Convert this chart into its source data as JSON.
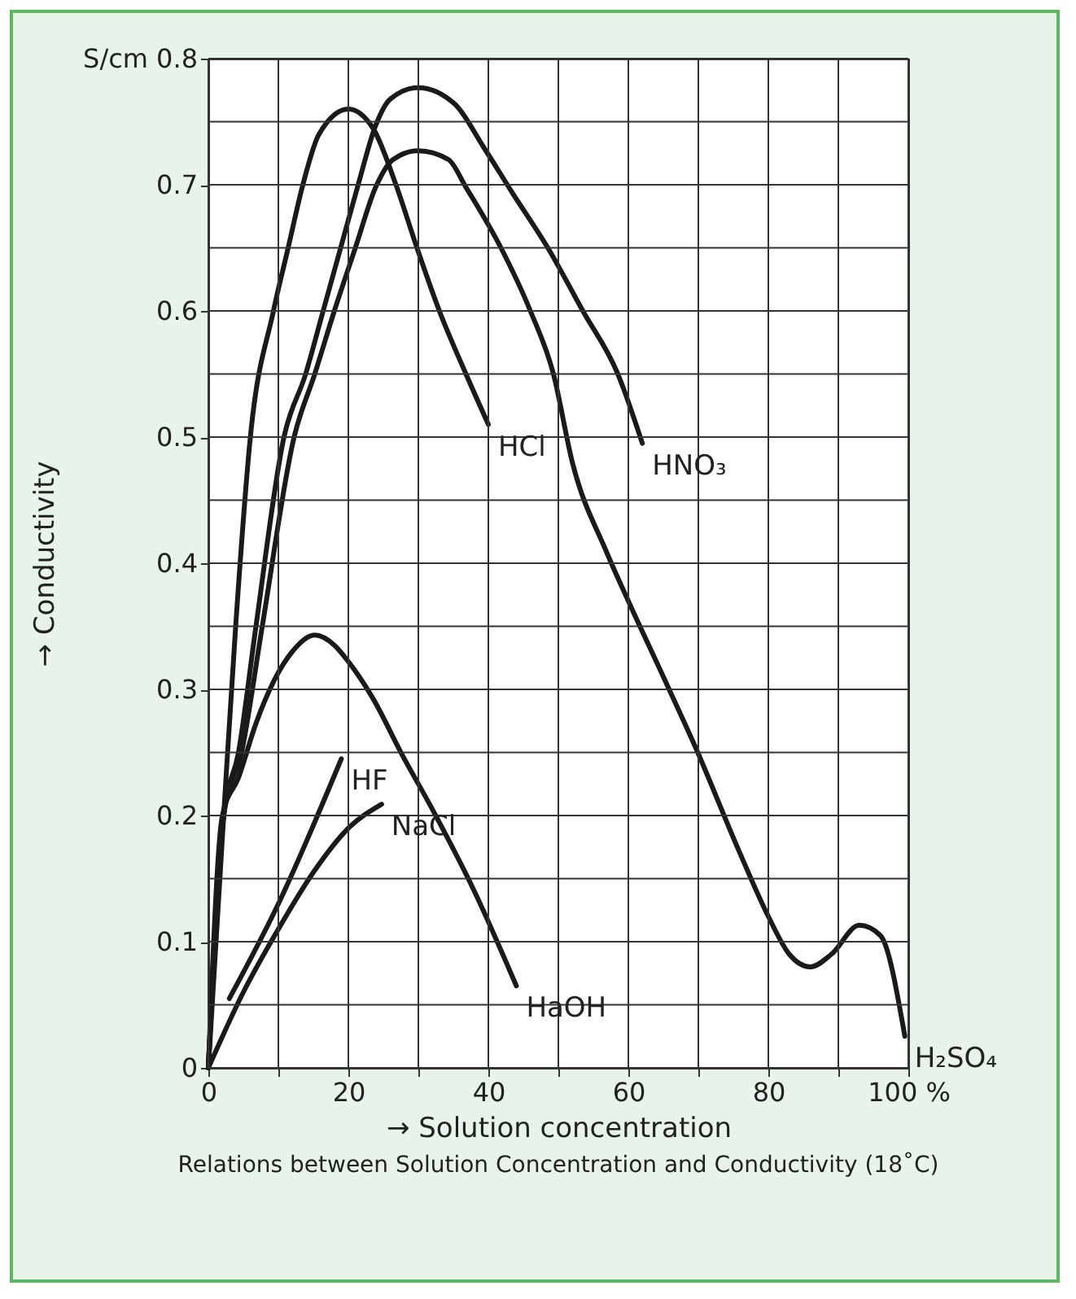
{
  "chart_data": {
    "type": "line",
    "xlabel": "→ Solution concentration",
    "ylabel": "→ Conductivity",
    "annotations": [
      "Relations between Solution Concentration and Conductivity (18˚C)"
    ],
    "xlim": [
      0,
      100
    ],
    "ylim": [
      0,
      0.8
    ],
    "xticks": [
      0,
      {
        "value": 10,
        "label": null
      },
      20,
      {
        "value": 30,
        "label": null
      },
      40,
      {
        "value": 50,
        "label": null
      },
      60,
      {
        "value": 70,
        "label": null
      },
      80,
      {
        "value": 90,
        "label": null
      },
      {
        "value": 100,
        "label": "100 %"
      }
    ],
    "yticks": [
      0,
      {
        "value": 0.05,
        "label": null
      },
      0.1,
      {
        "value": 0.15,
        "label": null
      },
      0.2,
      {
        "value": 0.25,
        "label": null
      },
      0.3,
      {
        "value": 0.35,
        "label": null
      },
      0.4,
      {
        "value": 0.45,
        "label": null
      },
      0.5,
      {
        "value": 0.55,
        "label": null
      },
      0.6,
      {
        "value": 0.65,
        "label": null
      },
      0.7,
      {
        "value": 0.75,
        "label": null
      },
      {
        "value": 0.8,
        "label": "S/cm 0.8"
      }
    ],
    "grid": true,
    "marker": "none",
    "line_style": "solid",
    "series": [
      {
        "name": "HCl",
        "color": "#1a1a1a",
        "x": [
          0,
          2.3,
          3.9,
          6,
          9.3,
          11.4,
          13.5,
          15.8,
          20,
          23.5,
          26.8,
          29.8,
          33,
          36.8,
          40
        ],
        "values": [
          0,
          0.21,
          0.35,
          0.5,
          0.6,
          0.65,
          0.7,
          0.74,
          0.76,
          0.745,
          0.7,
          0.65,
          0.6,
          0.55,
          0.51
        ]
      },
      {
        "name": "HNO₃",
        "color": "#1a1a1a",
        "x": [
          0,
          2.2,
          4.3,
          6.8,
          10.8,
          13.9,
          16.4,
          18.9,
          21.4,
          23.9,
          26,
          30,
          35.2,
          39.3,
          43.5,
          48.5,
          53.5,
          58.5,
          62
        ],
        "values": [
          0,
          0.2,
          0.25,
          0.35,
          0.5,
          0.55,
          0.6,
          0.65,
          0.7,
          0.747,
          0.768,
          0.777,
          0.764,
          0.73,
          0.693,
          0.65,
          0.6,
          0.55,
          0.495
        ]
      },
      {
        "name": "H₂SO₄",
        "color": "#1a1a1a",
        "x": [
          0,
          2.2,
          4.75,
          7.7,
          12.25,
          15.2,
          18,
          21,
          23.9,
          26.4,
          30,
          34.3,
          36.8,
          41.8,
          46,
          49.3,
          52,
          56.8,
          60,
          65,
          69.6,
          75.8,
          80,
          83,
          86,
          89,
          93,
          96,
          99.5
        ],
        "values": [
          0,
          0.2,
          0.25,
          0.35,
          0.5,
          0.55,
          0.6,
          0.65,
          0.698,
          0.72,
          0.727,
          0.72,
          0.698,
          0.65,
          0.6,
          0.55,
          0.48,
          0.41,
          0.37,
          0.31,
          0.254,
          0.172,
          0.12,
          0.09,
          0.08,
          0.09,
          0.113,
          0.105,
          0.025
        ]
      },
      {
        "name": "HaOH",
        "color": "#1a1a1a",
        "x": [
          0,
          2,
          4.3,
          6.8,
          9.3,
          12,
          15.2,
          18,
          20,
          23.5,
          27.7,
          31.8,
          38,
          44
        ],
        "values": [
          0,
          0.2,
          0.23,
          0.273,
          0.306,
          0.33,
          0.343,
          0.335,
          0.322,
          0.293,
          0.248,
          0.207,
          0.14,
          0.065
        ]
      },
      {
        "name": "HF",
        "color": "#1a1a1a",
        "x": [
          3,
          10,
          19
        ],
        "values": [
          0.055,
          0.13,
          0.245
        ]
      },
      {
        "name": "NaCl",
        "color": "#1a1a1a",
        "x": [
          0,
          5,
          10,
          15,
          20,
          24.75
        ],
        "values": [
          0,
          0.06,
          0.11,
          0.155,
          0.19,
          0.209
        ]
      }
    ]
  }
}
